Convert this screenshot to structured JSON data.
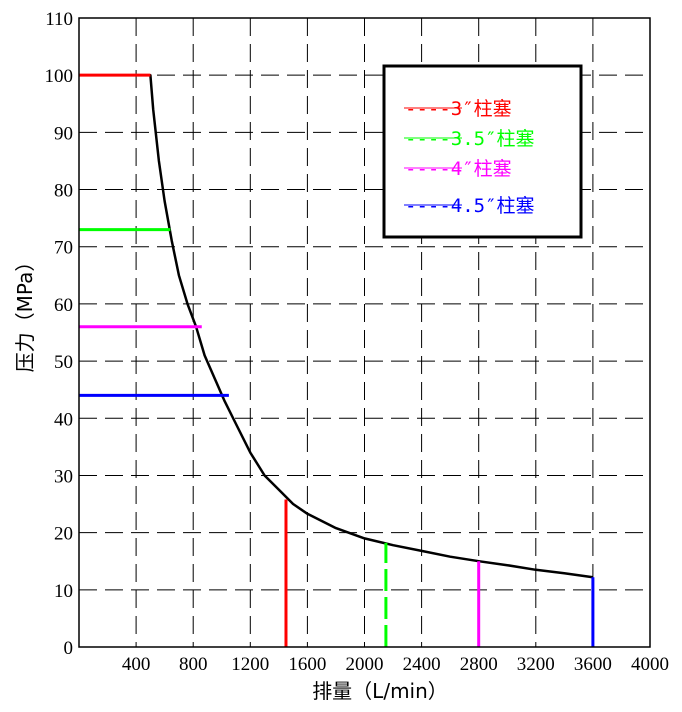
{
  "chart_data": {
    "type": "line",
    "xlabel": "排量（L/min）",
    "ylabel": "压力（MPa）",
    "xlim": [
      0,
      4000
    ],
    "ylim": [
      0,
      110
    ],
    "x_ticks": [
      "400",
      "800",
      "1200",
      "1600",
      "2000",
      "2400",
      "2800",
      "3200",
      "3600",
      "4000"
    ],
    "y_ticks": [
      "0",
      "10",
      "20",
      "30",
      "40",
      "50",
      "60",
      "70",
      "80",
      "90",
      "100",
      "110"
    ],
    "grid": true,
    "grid_style": "dashed",
    "legend_position": "top-right",
    "curve": {
      "color": "#000000",
      "x": [
        500,
        520,
        560,
        600,
        650,
        700,
        760,
        820,
        880,
        950,
        1020,
        1100,
        1200,
        1300,
        1400,
        1500,
        1600,
        1800,
        2000,
        2200,
        2400,
        2600,
        2800,
        3000,
        3200,
        3400,
        3600
      ],
      "y": [
        100,
        94,
        85,
        78,
        71,
        65,
        60,
        56,
        51,
        47,
        43,
        39,
        34,
        30,
        27.5,
        25,
        23.3,
        20.8,
        19,
        17.8,
        16.8,
        15.8,
        15,
        14.3,
        13.5,
        12.9,
        12.2
      ]
    },
    "series": [
      {
        "name": "----3″柱塞",
        "color": "#ff0000",
        "y": 100,
        "x_end": 500,
        "x": 1450,
        "y_top": 25.8
      },
      {
        "name": "----3.5″柱塞",
        "color": "#00ff00",
        "y": 73,
        "x_end": 640,
        "x": 2150,
        "y_top": 18.2
      },
      {
        "name": "----4″柱塞",
        "color": "#ff00ff",
        "y": 56,
        "x_end": 860,
        "x": 2800,
        "y_top": 15
      },
      {
        "name": "----4.5″柱塞",
        "color": "#0000ff",
        "y": 44,
        "x_end": 1050,
        "x": 3600,
        "y_top": 12.2
      }
    ]
  }
}
